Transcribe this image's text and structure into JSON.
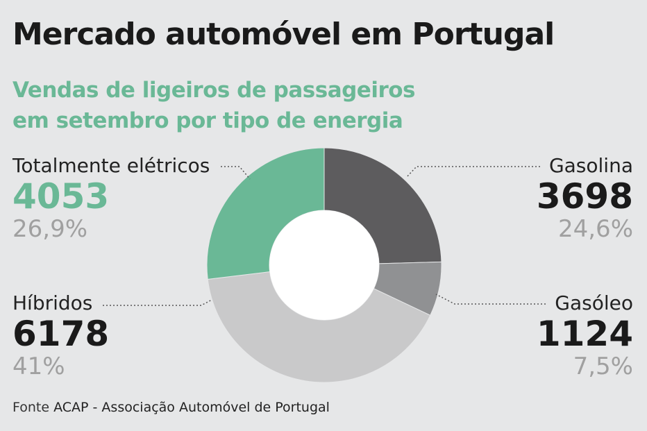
{
  "header": {
    "title": "Mercado automóvel em Portugal",
    "subtitle_line1": "Vendas de ligeiros de passageiros",
    "subtitle_line2": "em setembro por tipo de energia"
  },
  "source": {
    "prefix": "Fonte",
    "name": "ACAP - Associação Automóvel de Portugal"
  },
  "chart_data": {
    "type": "pie",
    "donut": true,
    "categories": [
      "Gasolina",
      "Gasóleo",
      "Híbridos",
      "Totalmente elétricos"
    ],
    "values": [
      3698,
      1124,
      6178,
      4053
    ],
    "percent_labels": [
      "24,6%",
      "7,5%",
      "41%",
      "26,9%"
    ],
    "value_labels": [
      "3698",
      "1124",
      "6178",
      "4053"
    ],
    "colors": [
      "#5d5c5e",
      "#909193",
      "#c9c9ca",
      "#6ab896"
    ],
    "title": "Mercado automóvel em Portugal",
    "subtitle": "Vendas de ligeiros de passageiros em setembro por tipo de energia",
    "legend": "none"
  },
  "labels": {
    "gasolina": {
      "name": "Gasolina",
      "value": "3698",
      "pct": "24,6%"
    },
    "gasoleo": {
      "name": "Gasóleo",
      "value": "1124",
      "pct": "7,5%"
    },
    "hibridos": {
      "name": "Híbridos",
      "value": "6178",
      "pct": "41%"
    },
    "eletricos": {
      "name": "Totalmente elétricos",
      "value": "4053",
      "pct": "26,9%"
    }
  }
}
